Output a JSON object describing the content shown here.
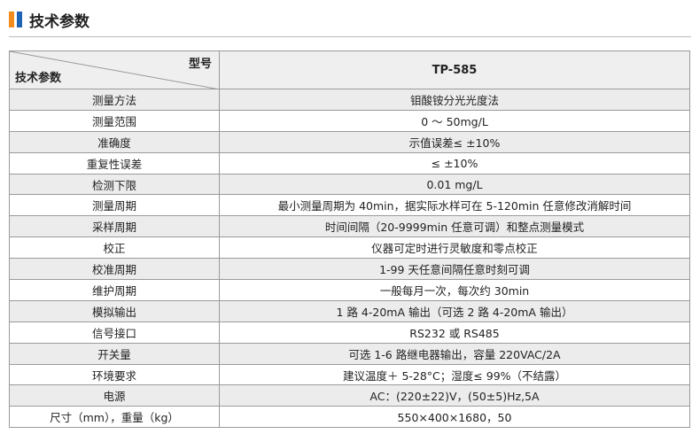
{
  "header": {
    "title": "技术参数"
  },
  "table": {
    "corner_top": "型号",
    "corner_bottom": "技术参数",
    "model": "TP-585",
    "rows": [
      [
        "测量方法",
        "钼酸铵分光光度法"
      ],
      [
        "测量范围",
        "0 ～ 50mg/L"
      ],
      [
        "准确度",
        "示值误差≤ ±10%"
      ],
      [
        "重复性误差",
        "≤ ±10%"
      ],
      [
        "检测下限",
        "0.01 mg/L"
      ],
      [
        "测量周期",
        "最小测量周期为 40min，据实际水样可在 5-120min 任意修改消解时间"
      ],
      [
        "采样周期",
        "时间间隔（20-9999min 任意可调）和整点测量模式"
      ],
      [
        "校正",
        "仪器可定时进行灵敏度和零点校正"
      ],
      [
        "校准周期",
        "1-99 天任意间隔任意时刻可调"
      ],
      [
        "维护周期",
        "一般每月一次，每次约 30min"
      ],
      [
        "模拟输出",
        "1 路 4-20mA 输出（可选 2 路 4-20mA 输出）"
      ],
      [
        "信号接口",
        "RS232 或 RS485"
      ],
      [
        "开关量",
        "可选 1-6 路继电器输出，容量 220VAC/2A"
      ],
      [
        "环境要求",
        "建议温度＋ 5-28°C；湿度≤ 99%（不结露）"
      ],
      [
        "电源",
        "AC：(220±22)V，(50±5)Hz,5A"
      ],
      [
        "尺寸（mm），重量（kg）",
        "550×400×1680，50"
      ]
    ]
  }
}
